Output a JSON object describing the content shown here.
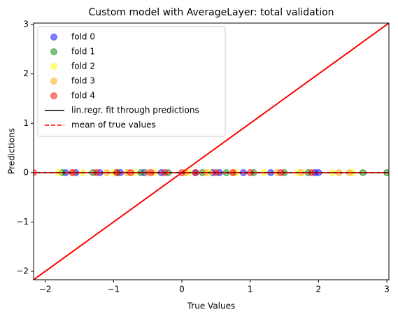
{
  "chart_data": {
    "type": "scatter",
    "title": "Custom model with AverageLayer: total validation",
    "x_label": "True Values",
    "y_label": "Predictions",
    "xlim": [
      -2.17,
      3.03
    ],
    "ylim": [
      -2.17,
      3.03
    ],
    "xticks": [
      {
        "value": -2,
        "label": "−2"
      },
      {
        "value": -1,
        "label": "−1"
      },
      0,
      1,
      2,
      3
    ],
    "yticks": [
      {
        "value": -2,
        "label": "−2"
      },
      {
        "value": -1,
        "label": "−1"
      },
      0,
      1,
      2,
      3
    ],
    "legend": "upper left",
    "series": [
      {
        "name": "fold 0",
        "color": "blue",
        "x": [
          -1.7,
          -1.55,
          -1.2,
          -0.9,
          -0.55,
          -0.3,
          0.2,
          0.45,
          0.55,
          0.9,
          1.3,
          1.95,
          2.0
        ],
        "y": [
          0,
          0,
          0,
          0,
          0,
          0,
          0,
          0,
          0,
          0,
          0,
          0,
          0
        ]
      },
      {
        "name": "fold 1",
        "color": "green",
        "x": [
          -1.75,
          -1.3,
          -0.95,
          -0.6,
          -0.2,
          0.3,
          0.65,
          1.05,
          1.5,
          1.85,
          2.65,
          3.0
        ],
        "y": [
          0,
          0,
          0,
          0,
          0,
          0,
          0,
          0,
          0,
          0,
          0,
          0
        ]
      },
      {
        "name": "fold 2",
        "color": "yellow",
        "x": [
          -1.8,
          -1.45,
          -1.0,
          -0.7,
          -0.4,
          0.1,
          0.4,
          0.8,
          1.2,
          1.7,
          2.2,
          2.5
        ],
        "y": [
          0,
          0,
          0,
          0,
          0,
          0,
          0,
          0,
          0,
          0,
          0,
          0
        ]
      },
      {
        "name": "fold 3",
        "color": "orange",
        "x": [
          -1.6,
          -1.1,
          -0.8,
          -0.5,
          0.05,
          0.35,
          0.75,
          1.4,
          1.75,
          2.3,
          2.45
        ],
        "y": [
          0,
          0,
          0,
          0,
          0,
          0,
          0,
          0,
          0,
          0,
          0
        ]
      },
      {
        "name": "fold 4",
        "color": "red",
        "x": [
          -2.17,
          -1.6,
          -1.25,
          -0.95,
          -0.75,
          -0.45,
          -0.25,
          0.0,
          0.2,
          0.5,
          0.75,
          1.0,
          1.45,
          1.9
        ],
        "y": [
          0,
          0,
          0,
          0,
          0,
          0,
          0,
          0,
          0,
          0,
          0,
          0,
          0,
          0
        ]
      }
    ],
    "lines": [
      {
        "name": "lin.regr. fit through predictions",
        "color": "black",
        "style": "solid",
        "x": [
          -2.17,
          3.03
        ],
        "y": [
          0,
          0
        ]
      },
      {
        "name": "mean of true values",
        "color": "red",
        "style": "dashed",
        "x": [
          -2.17,
          3.03
        ],
        "y": [
          0,
          0
        ]
      }
    ],
    "identity_line": {
      "color": "red",
      "x": [
        -2.17,
        3.03
      ],
      "y": [
        -2.17,
        3.03
      ]
    }
  }
}
